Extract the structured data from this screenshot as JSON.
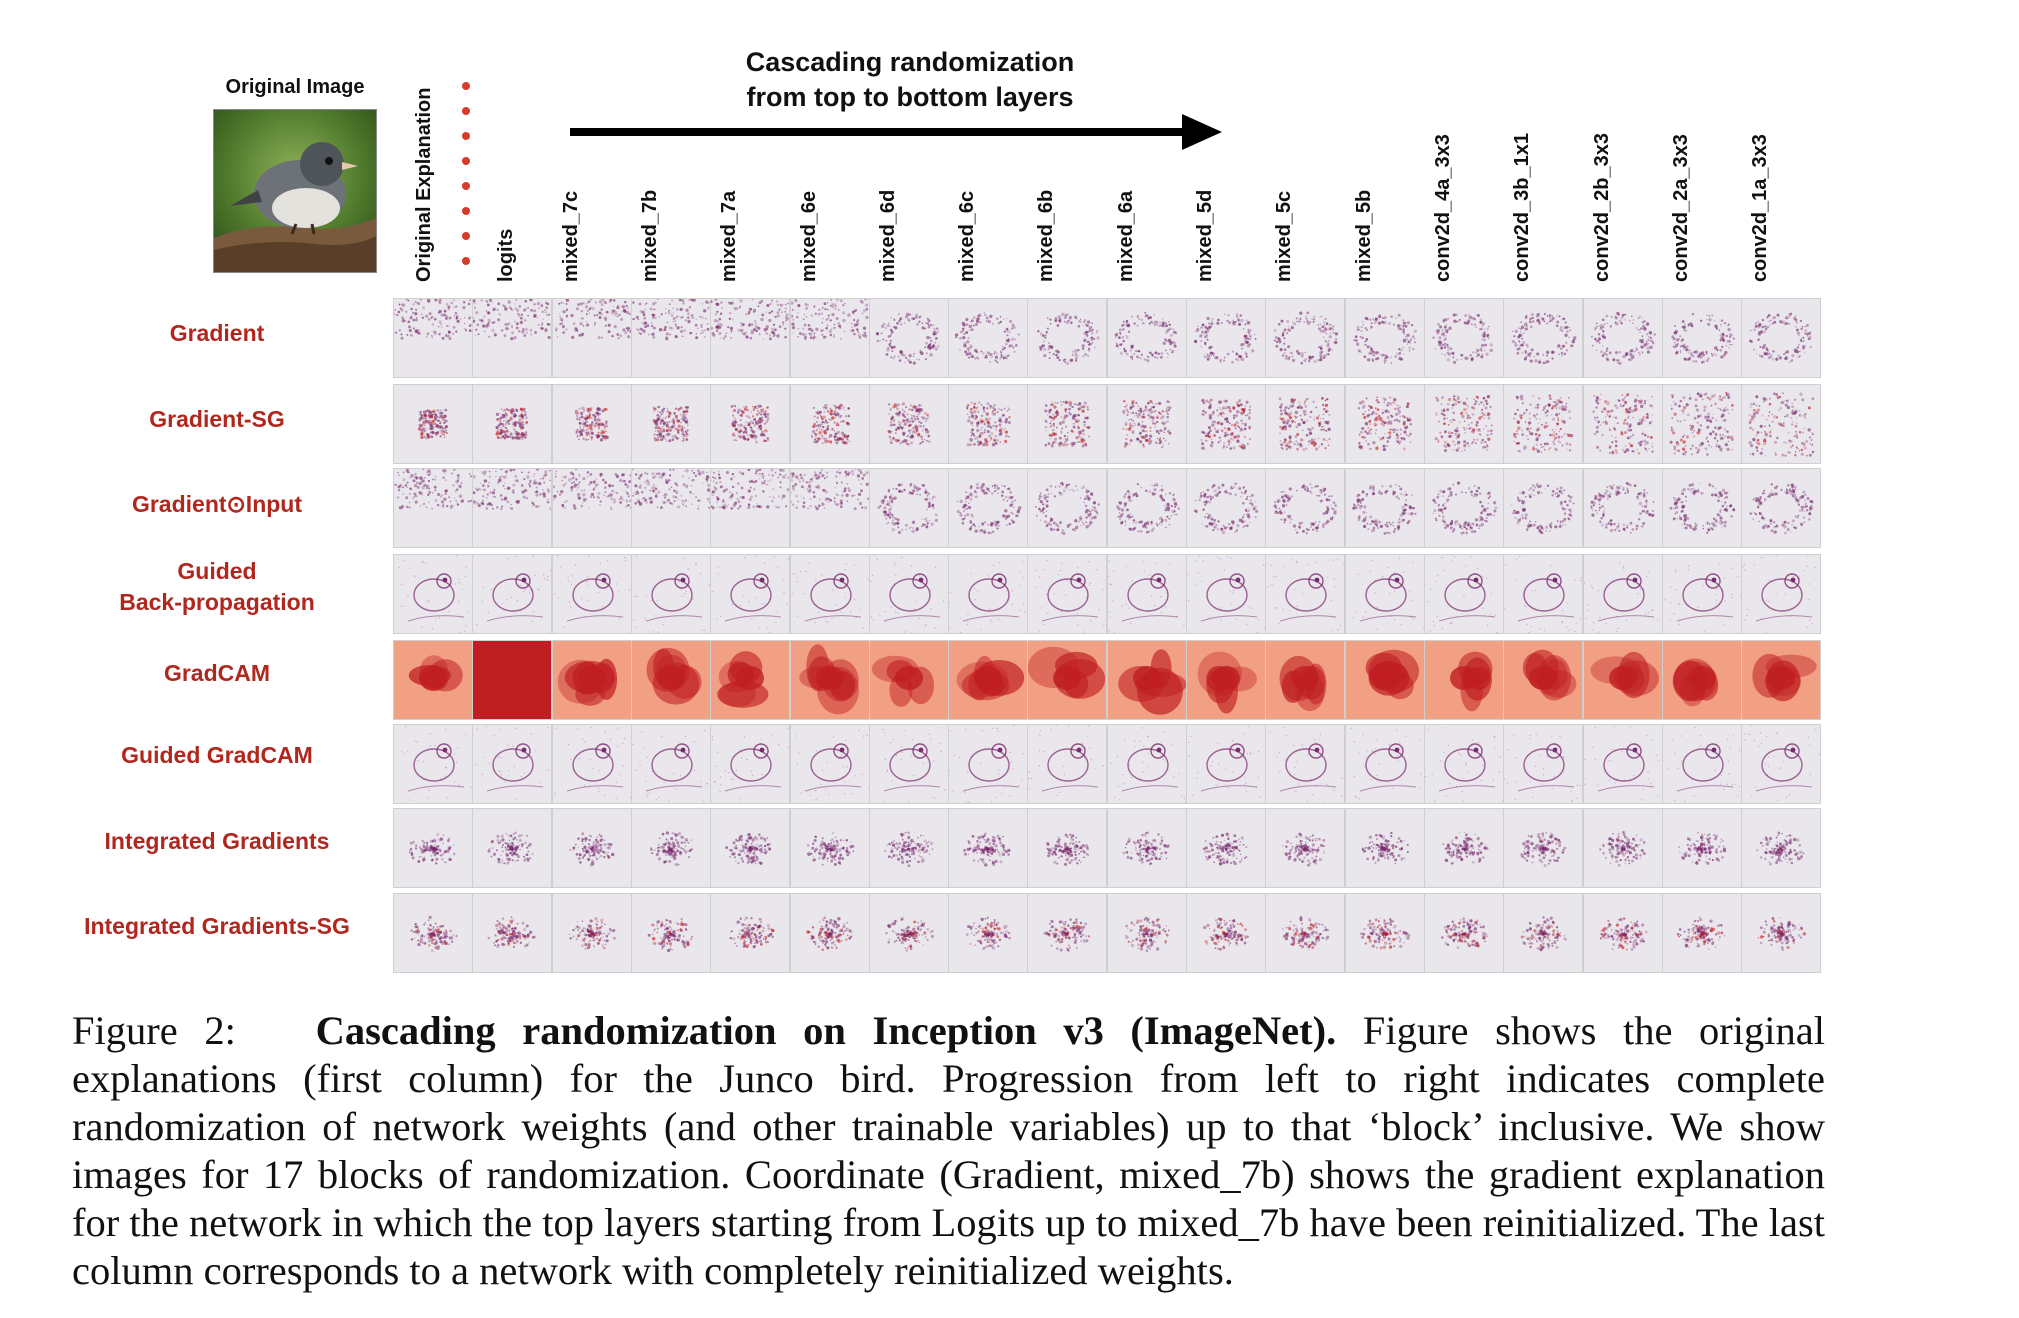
{
  "figure": {
    "original_image_label": "Original Image",
    "arrow_title_line1": "Cascading randomization",
    "arrow_title_line2": "from top to bottom layers",
    "column_headers": [
      "Original Explanation",
      "logits",
      "mixed_7c",
      "mixed_7b",
      "mixed_7a",
      "mixed_6e",
      "mixed_6d",
      "mixed_6c",
      "mixed_6b",
      "mixed_6a",
      "mixed_5d",
      "mixed_5c",
      "mixed_5b",
      "conv2d_4a_3x3",
      "conv2d_3b_1x1",
      "conv2d_2b_3x3",
      "conv2d_2a_3x3",
      "conv2d_1a_3x3"
    ],
    "rows": [
      {
        "label": "Gradient",
        "style": "noise"
      },
      {
        "label": "Gradient-SG",
        "style": "blob"
      },
      {
        "label": "Gradient⊙Input",
        "style": "noise"
      },
      {
        "label_line1": "Guided",
        "label_line2": "Back-propagation",
        "style": "outline"
      },
      {
        "label": "GradCAM",
        "style": "heat"
      },
      {
        "label": "Guided GradCAM",
        "style": "outline"
      },
      {
        "label": "Integrated Gradients",
        "style": "ig"
      },
      {
        "label": "Integrated Gradients-SG",
        "style": "igsg"
      }
    ],
    "colors": {
      "row_label": "#b1271e",
      "tile_background": "#e9e6ec",
      "saliency_purple": "#7a2a6e",
      "saliency_red": "#c61a1a",
      "gradcam_dark": "#bf1e22",
      "gradcam_light": "#f2a083",
      "marker_dots": "#d63b2b"
    }
  },
  "caption": {
    "label": "Figure 2:",
    "title": "Cascading randomization on Inception v3 (ImageNet).",
    "body": "Figure shows the original explanations (first column) for the Junco bird. Progression from left to right indicates complete randomization of network weights (and other trainable variables) up to that ‘block’ inclusive. We show images for 17 blocks of randomization. Coordinate (Gradient, mixed_7b) shows the gradient explanation for the network in which the top layers starting from Logits up to mixed_7b have been reinitialized. The last column corresponds to a network with completely reinitialized weights."
  }
}
